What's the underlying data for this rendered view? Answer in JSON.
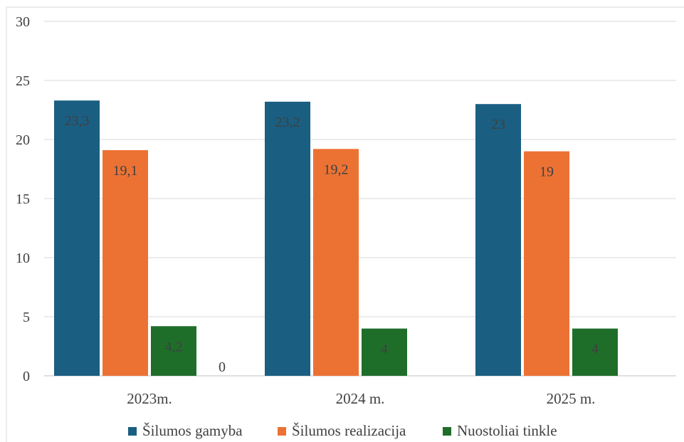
{
  "chart_data": {
    "type": "bar",
    "categories": [
      "2023m.",
      "2024 m.",
      "2025 m."
    ],
    "series": [
      {
        "name": "Šilumos gamyba",
        "values": [
          23.3,
          23.2,
          23
        ],
        "labels": [
          "23,3",
          "23,2",
          "23"
        ],
        "color": "#1a5e82"
      },
      {
        "name": "Šilumos realizacija",
        "values": [
          19.1,
          19.2,
          19
        ],
        "labels": [
          "19,1",
          "19,2",
          "19"
        ],
        "color": "#ec7234"
      },
      {
        "name": "Nuostoliai tinkle",
        "values": [
          4.2,
          4,
          4
        ],
        "labels": [
          "4,2",
          "4",
          "4"
        ],
        "color": "#1e6e2a"
      },
      {
        "name": "",
        "values": [
          0,
          null,
          null
        ],
        "labels": [
          "0",
          "",
          ""
        ],
        "color": "#5b9bd5"
      }
    ],
    "ylim": [
      0,
      30
    ],
    "yticks": [
      "0",
      "5",
      "10",
      "15",
      "20",
      "25",
      "30"
    ],
    "grid": true,
    "legend": "bottom"
  }
}
